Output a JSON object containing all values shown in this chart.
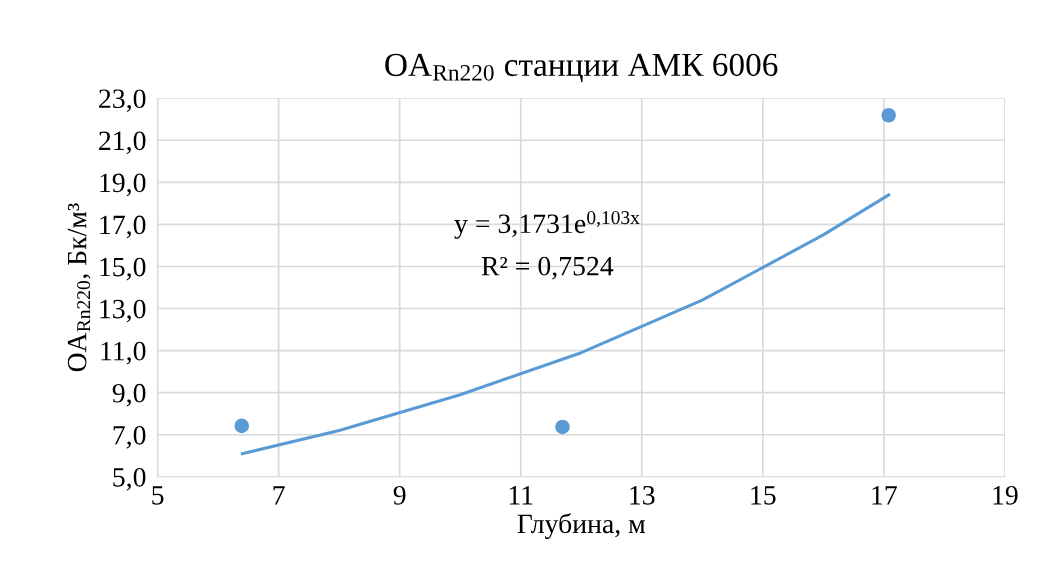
{
  "chart_data": {
    "type": "scatter",
    "title": "OA$_{Rn220}$ станции АМК 6006",
    "xlabel": "Глубина, м",
    "ylabel": "OA$_{Rn220}$, Бк/м³",
    "annotations": [
      "y = 3,1731e$^{0,103x}$",
      "R² = 0,7524"
    ],
    "series": [
      {
        "color": "#5b9bd5",
        "x": [
          6.39,
          11.69,
          17.08
        ],
        "values": [
          7.42,
          7.37,
          22.19
        ],
        "marker": "circle"
      },
      {
        "type": "line",
        "color": "#5b9bd5",
        "x": [
          6.4,
          8,
          10,
          12,
          14,
          16,
          17.08
        ],
        "values": [
          6.1,
          7.2,
          8.9,
          10.9,
          13.4,
          16.5,
          18.4
        ],
        "marker": "none",
        "line_style": "solid"
      }
    ],
    "xlim": [
      5,
      19
    ],
    "xticks": [
      5,
      7,
      9,
      11,
      13,
      15,
      17,
      19
    ],
    "ylim": [
      5,
      23
    ],
    "yticks": [
      {
        "value": 5,
        "label": "5,0"
      },
      {
        "value": 7,
        "label": "7,0"
      },
      {
        "value": 9,
        "label": "9,0"
      },
      {
        "value": 11,
        "label": "11,0"
      },
      {
        "value": 13,
        "label": "13,0"
      },
      {
        "value": 15,
        "label": "15,0"
      },
      {
        "value": 17,
        "label": "17,0"
      },
      {
        "value": 19,
        "label": "19,0"
      },
      {
        "value": 21,
        "label": "21,0"
      },
      {
        "value": 23,
        "label": "23,0"
      }
    ],
    "grid": true
  }
}
